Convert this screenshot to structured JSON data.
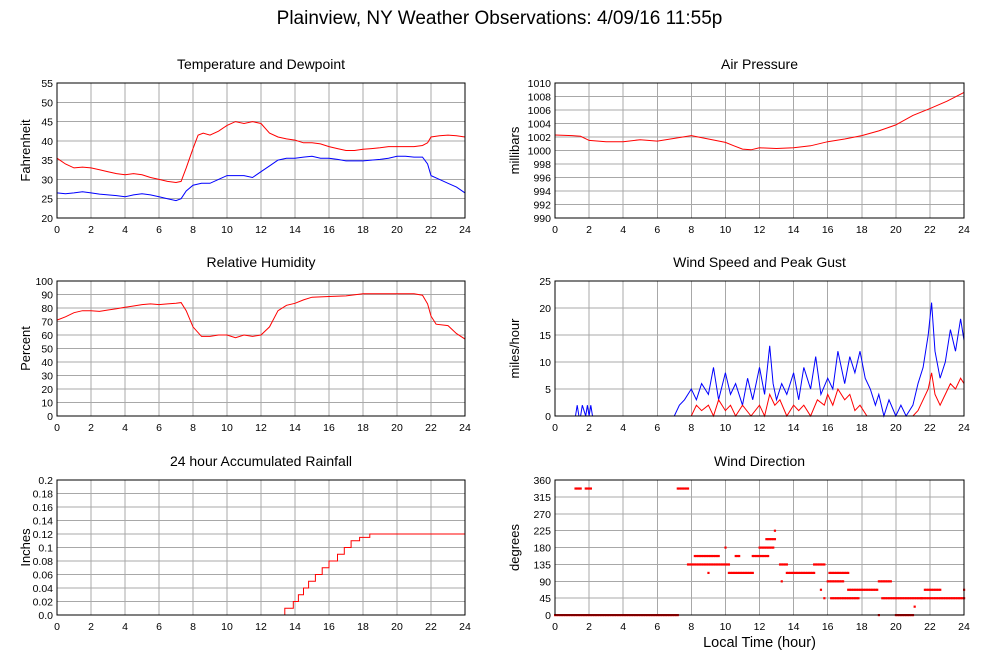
{
  "title": "Plainview, NY Weather Observations: 4/09/16 11:55p",
  "xlabel": "Local Time (hour)",
  "chart_data": [
    {
      "id": "temp",
      "type": "line",
      "title": "Temperature and Dewpoint",
      "ylabel": "Fahrenheit",
      "xlim": [
        0,
        24
      ],
      "ylim": [
        20,
        55
      ],
      "yticks": [
        20,
        25,
        30,
        35,
        40,
        45,
        50,
        55
      ],
      "xticks": [
        0,
        2,
        4,
        6,
        8,
        10,
        12,
        14,
        16,
        18,
        20,
        22,
        24
      ],
      "grid": true,
      "series": [
        {
          "color": "#ff0000",
          "x": [
            0,
            0.5,
            1,
            1.5,
            2,
            2.5,
            3,
            3.5,
            4,
            4.5,
            5,
            5.5,
            6,
            6.5,
            7,
            7.3,
            7.6,
            8,
            8.3,
            8.6,
            9,
            9.5,
            10,
            10.5,
            11,
            11.5,
            12,
            12.5,
            13,
            13.5,
            14,
            14.5,
            15,
            15.5,
            16,
            16.5,
            17,
            17.5,
            18,
            18.5,
            19,
            19.5,
            20,
            20.5,
            21,
            21.5,
            21.8,
            22,
            22.5,
            23,
            23.5,
            24
          ],
          "y": [
            35.5,
            34,
            33,
            33.2,
            33,
            32.5,
            32,
            31.5,
            31.2,
            31.5,
            31.2,
            30.5,
            30,
            29.5,
            29.2,
            29.5,
            33,
            38,
            41.5,
            42,
            41.5,
            42.5,
            44,
            45,
            44.5,
            45,
            44.5,
            42,
            41,
            40.5,
            40.2,
            39.5,
            39.5,
            39.2,
            38.5,
            38,
            37.5,
            37.5,
            37.8,
            38,
            38.2,
            38.5,
            38.5,
            38.5,
            38.5,
            38.8,
            39.5,
            41,
            41.3,
            41.5,
            41.3,
            41
          ]
        },
        {
          "color": "#0000ff",
          "x": [
            0,
            0.5,
            1,
            1.5,
            2,
            2.5,
            3,
            3.5,
            4,
            4.5,
            5,
            5.5,
            6,
            6.5,
            7,
            7.3,
            7.6,
            8,
            8.5,
            9,
            9.5,
            10,
            10.5,
            11,
            11.5,
            12,
            12.5,
            13,
            13.5,
            14,
            14.5,
            15,
            15.5,
            16,
            16.5,
            17,
            17.5,
            18,
            18.5,
            19,
            19.5,
            20,
            20.5,
            21,
            21.5,
            21.8,
            22,
            22.5,
            23,
            23.5,
            24
          ],
          "y": [
            26.5,
            26.3,
            26.5,
            26.8,
            26.5,
            26.2,
            26,
            25.8,
            25.5,
            26,
            26.3,
            26,
            25.5,
            25,
            24.5,
            25,
            27,
            28.5,
            29,
            29,
            30,
            31,
            31,
            31,
            30.5,
            32,
            33.5,
            35,
            35.5,
            35.5,
            35.8,
            36,
            35.5,
            35.5,
            35.2,
            34.8,
            34.8,
            34.8,
            35,
            35.2,
            35.5,
            36,
            36,
            35.8,
            35.8,
            34,
            31,
            30,
            29,
            28,
            26.5
          ]
        }
      ]
    },
    {
      "id": "pressure",
      "type": "line",
      "title": "Air Pressure",
      "ylabel": "millibars",
      "xlim": [
        0,
        24
      ],
      "ylim": [
        990,
        1010
      ],
      "yticks": [
        990,
        992,
        994,
        996,
        998,
        1000,
        1002,
        1004,
        1006,
        1008,
        1010
      ],
      "xticks": [
        0,
        2,
        4,
        6,
        8,
        10,
        12,
        14,
        16,
        18,
        20,
        22,
        24
      ],
      "grid": true,
      "series": [
        {
          "color": "#ff0000",
          "x": [
            0,
            1,
            1.5,
            2,
            3,
            4,
            5,
            6,
            7,
            8,
            9,
            10,
            10.5,
            11,
            11.5,
            12,
            13,
            14,
            15,
            16,
            17,
            18,
            19,
            20,
            21,
            22,
            23,
            24
          ],
          "y": [
            1002.3,
            1002.2,
            1002.1,
            1001.5,
            1001.3,
            1001.3,
            1001.6,
            1001.4,
            1001.8,
            1002.2,
            1001.7,
            1001.2,
            1000.7,
            1000.2,
            1000.1,
            1000.4,
            1000.3,
            1000.4,
            1000.7,
            1001.3,
            1001.7,
            1002.2,
            1002.9,
            1003.8,
            1005.2,
            1006.2,
            1007.3,
            1008.6
          ]
        }
      ]
    },
    {
      "id": "humidity",
      "type": "line",
      "title": "Relative Humidity",
      "ylabel": "Percent",
      "xlim": [
        0,
        24
      ],
      "ylim": [
        0,
        100
      ],
      "yticks": [
        0,
        10,
        20,
        30,
        40,
        50,
        60,
        70,
        80,
        90,
        100
      ],
      "xticks": [
        0,
        2,
        4,
        6,
        8,
        10,
        12,
        14,
        16,
        18,
        20,
        22,
        24
      ],
      "grid": true,
      "series": [
        {
          "color": "#ff0000",
          "x": [
            0,
            0.5,
            1,
            1.5,
            2,
            2.5,
            3,
            3.5,
            4,
            4.5,
            5,
            5.5,
            6,
            6.5,
            7,
            7.3,
            7.6,
            8,
            8.5,
            9,
            9.5,
            10,
            10.5,
            11,
            11.5,
            12,
            12.5,
            13,
            13.5,
            14,
            14.5,
            15,
            16,
            17,
            18,
            19,
            20,
            21,
            21.5,
            21.8,
            22,
            22.3,
            23,
            23.5,
            24
          ],
          "y": [
            71,
            73.5,
            76.5,
            78,
            78,
            77.5,
            78.5,
            79.5,
            80.5,
            81.5,
            82.5,
            83,
            82.5,
            83,
            83.5,
            84,
            78,
            66,
            59,
            59,
            60,
            60,
            58,
            60,
            59,
            60,
            66,
            78,
            82,
            83.5,
            86,
            88,
            88.5,
            89,
            90.5,
            90.5,
            90.5,
            90.5,
            89.5,
            83,
            74,
            68,
            67,
            61,
            57
          ]
        }
      ]
    },
    {
      "id": "wind",
      "type": "line",
      "title": "Wind Speed and Peak Gust",
      "ylabel": "miles/hour",
      "xlim": [
        0,
        24
      ],
      "ylim": [
        0,
        25
      ],
      "yticks": [
        0,
        5,
        10,
        15,
        20,
        25
      ],
      "xticks": [
        0,
        2,
        4,
        6,
        8,
        10,
        12,
        14,
        16,
        18,
        20,
        22,
        24
      ],
      "grid": true,
      "series": [
        {
          "color": "#0000ff",
          "x": [
            0,
            1.2,
            1.3,
            1.4,
            1.5,
            1.6,
            1.8,
            1.9,
            2,
            2.1,
            2.2,
            7,
            7.3,
            7.6,
            8,
            8.3,
            8.6,
            9,
            9.3,
            9.6,
            10,
            10.3,
            10.6,
            11,
            11.3,
            11.6,
            12,
            12.3,
            12.6,
            12.8,
            13,
            13.3,
            13.6,
            14,
            14.3,
            14.6,
            15,
            15.3,
            15.6,
            16,
            16.3,
            16.6,
            17,
            17.3,
            17.6,
            17.9,
            18.2,
            18.5,
            18.8,
            19,
            19.3,
            19.6,
            20,
            20.3,
            20.6,
            21,
            21.3,
            21.6,
            21.9,
            22.1,
            22.3,
            22.6,
            22.9,
            23.2,
            23.5,
            23.8,
            24
          ],
          "y": [
            0,
            0,
            2,
            0,
            0,
            2,
            0,
            2,
            0,
            2,
            0,
            0,
            2,
            3,
            5,
            3,
            6,
            4,
            9,
            3,
            8,
            4,
            6,
            2,
            7,
            3,
            9,
            4,
            13,
            6,
            3,
            6,
            4,
            8,
            3,
            9,
            5,
            11,
            4,
            7,
            5,
            12,
            6,
            11,
            8,
            12,
            7,
            5,
            2,
            4,
            0,
            3,
            0,
            2,
            0,
            2,
            6,
            9,
            15,
            21,
            12,
            7,
            10,
            16,
            12,
            18,
            14
          ]
        },
        {
          "color": "#ff0000",
          "x": [
            0,
            8,
            8.3,
            8.6,
            9,
            9.3,
            9.6,
            10,
            10.3,
            10.6,
            11,
            11.5,
            12,
            12.3,
            12.6,
            12.9,
            13.2,
            13.6,
            14,
            14.3,
            14.6,
            15,
            15.4,
            15.8,
            16,
            16.3,
            16.6,
            17,
            17.3,
            17.6,
            17.9,
            18.3,
            18.7,
            19,
            19.5,
            20,
            21,
            21.3,
            21.6,
            21.9,
            22.1,
            22.3,
            22.6,
            22.9,
            23.2,
            23.5,
            23.8,
            24
          ],
          "y": [
            0,
            0,
            2,
            1,
            2,
            0,
            3,
            1,
            2,
            0,
            2,
            0,
            2,
            0,
            4,
            2,
            3,
            0,
            2,
            1,
            2,
            0,
            3,
            2,
            4,
            2,
            5,
            3,
            4,
            1,
            2,
            0,
            0,
            0,
            0,
            0,
            0,
            1,
            3,
            5,
            8,
            4,
            2,
            4,
            6,
            5,
            7,
            6
          ]
        }
      ]
    },
    {
      "id": "rain",
      "type": "line",
      "title": "24 hour Accumulated Rainfall",
      "ylabel": "Inches",
      "xlim": [
        0,
        24
      ],
      "ylim": [
        0,
        0.2
      ],
      "yticks": [
        0.0,
        0.02,
        0.04,
        0.06,
        0.08,
        0.1,
        0.12,
        0.14,
        0.16,
        0.18,
        0.2
      ],
      "ytick_labels": [
        "0.0",
        "0.02",
        "0.04",
        "0.06",
        "0.08",
        "0.1",
        "0.12",
        "0.14",
        "0.16",
        "0.18",
        "0.2"
      ],
      "xticks": [
        0,
        2,
        4,
        6,
        8,
        10,
        12,
        14,
        16,
        18,
        20,
        22,
        24
      ],
      "grid": true,
      "series": [
        {
          "color": "#ff0000",
          "x": [
            0,
            13.4,
            13.4,
            13.9,
            13.9,
            14.2,
            14.2,
            14.5,
            14.5,
            14.8,
            14.8,
            15.2,
            15.2,
            15.6,
            15.6,
            16,
            16,
            16.5,
            16.5,
            16.9,
            16.9,
            17.3,
            17.3,
            17.8,
            17.8,
            18.4,
            18.4,
            24
          ],
          "y": [
            0,
            0,
            0.01,
            0.01,
            0.02,
            0.02,
            0.03,
            0.03,
            0.04,
            0.04,
            0.05,
            0.05,
            0.06,
            0.06,
            0.07,
            0.07,
            0.08,
            0.08,
            0.09,
            0.09,
            0.1,
            0.1,
            0.11,
            0.11,
            0.115,
            0.115,
            0.12,
            0.12
          ]
        }
      ]
    },
    {
      "id": "direction",
      "type": "scatter",
      "title": "Wind Direction",
      "ylabel": "degrees",
      "xlim": [
        0,
        24
      ],
      "ylim": [
        0,
        360
      ],
      "yticks": [
        0,
        45,
        90,
        135,
        180,
        225,
        270,
        315,
        360
      ],
      "xticks": [
        0,
        2,
        4,
        6,
        8,
        10,
        12,
        14,
        16,
        18,
        20,
        22,
        24
      ],
      "grid": true,
      "series": [
        {
          "color": "#ff0000",
          "segments": [
            {
              "x0": 0,
              "x1": 7.2,
              "y": 0
            },
            {
              "x0": 1.2,
              "x1": 1.5,
              "y": 337.5
            },
            {
              "x0": 1.8,
              "x1": 2.1,
              "y": 337.5
            },
            {
              "x0": 7.2,
              "x1": 7.8,
              "y": 337.5
            },
            {
              "x0": 7.8,
              "x1": 10.2,
              "y": 135
            },
            {
              "x0": 8.2,
              "x1": 9.5,
              "y": 157.5
            },
            {
              "x0": 10.2,
              "x1": 11.6,
              "y": 112.5
            },
            {
              "x0": 10.6,
              "x1": 10.8,
              "y": 157.5
            },
            {
              "x0": 11.6,
              "x1": 12.5,
              "y": 157.5
            },
            {
              "x0": 12.0,
              "x1": 12.8,
              "y": 180
            },
            {
              "x0": 12.4,
              "x1": 12.9,
              "y": 202.5
            },
            {
              "x0": 13.2,
              "x1": 13.6,
              "y": 135
            },
            {
              "x0": 13.6,
              "x1": 15.2,
              "y": 112.5
            },
            {
              "x0": 15.2,
              "x1": 15.8,
              "y": 135
            },
            {
              "x0": 16.1,
              "x1": 17.2,
              "y": 112.5
            },
            {
              "x0": 16.0,
              "x1": 16.9,
              "y": 90
            },
            {
              "x0": 16.2,
              "x1": 17.8,
              "y": 45
            },
            {
              "x0": 17.2,
              "x1": 18.9,
              "y": 67.5
            },
            {
              "x0": 19.0,
              "x1": 19.7,
              "y": 90
            },
            {
              "x0": 19.2,
              "x1": 21.5,
              "y": 45
            },
            {
              "x0": 20.0,
              "x1": 21.0,
              "y": 0
            },
            {
              "x0": 21.7,
              "x1": 22.6,
              "y": 67.5
            },
            {
              "x0": 21.5,
              "x1": 24,
              "y": 45
            }
          ],
          "points": [
            {
              "x": 9.0,
              "y": 112.5
            },
            {
              "x": 9.6,
              "y": 157.5
            },
            {
              "x": 10.0,
              "y": 180
            },
            {
              "x": 12.9,
              "y": 225
            },
            {
              "x": 13.3,
              "y": 90
            },
            {
              "x": 15.6,
              "y": 67.5
            },
            {
              "x": 15.8,
              "y": 45
            },
            {
              "x": 19.0,
              "y": 0
            },
            {
              "x": 21.1,
              "y": 22.5
            },
            {
              "x": 24.0,
              "y": 67.5
            }
          ]
        }
      ]
    }
  ]
}
